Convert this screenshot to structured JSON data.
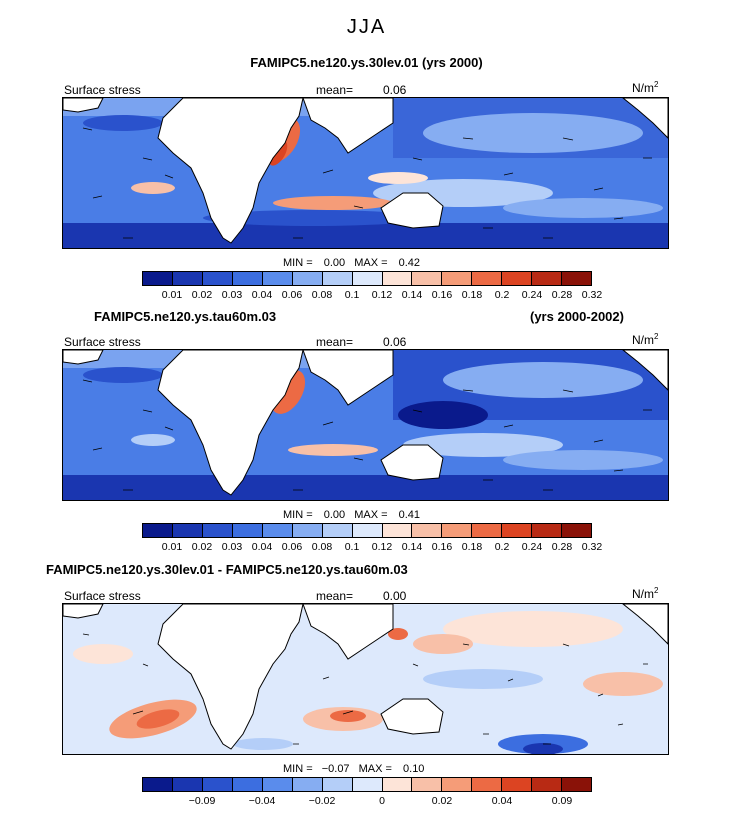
{
  "page_title": "JJA",
  "units_text": "N/m",
  "units_exp": "2",
  "mean_label": "mean=",
  "colors": {
    "stress": [
      "#0a1a8c",
      "#1a36b0",
      "#2a52cc",
      "#3c6ee0",
      "#5a8cec",
      "#86adf2",
      "#b4cef8",
      "#dde9fc",
      "#fde4d8",
      "#f8c0a8",
      "#f59c78",
      "#ec6a44",
      "#dc4422",
      "#b82a14",
      "#8a1208"
    ],
    "diff": [
      "#0a1a8c",
      "#1a36b0",
      "#2a52cc",
      "#3c6ee0",
      "#5a8cec",
      "#86adf2",
      "#b4cef8",
      "#dde9fc",
      "#fde4d8",
      "#f8c0a8",
      "#f59c78",
      "#ec6a44",
      "#dc4422",
      "#b82a14",
      "#8a1208"
    ]
  },
  "panels": [
    {
      "case_title": "FAMIPC5.ne120.ys.30lev.01 (yrs 2000)",
      "years": "",
      "field_label": "Surface stress",
      "mean_value": "0.06",
      "min_label": "MIN =",
      "min_value": "0.00",
      "max_label": "MAX =",
      "max_value": "0.42",
      "colorbar_ticks": [
        "0.01",
        "0.02",
        "0.03",
        "0.04",
        "0.06",
        "0.08",
        "0.1",
        "0.12",
        "0.14",
        "0.16",
        "0.18",
        "0.2",
        "0.24",
        "0.28",
        "0.32"
      ]
    },
    {
      "case_title": "FAMIPC5.ne120.ys.tau60m.03",
      "years": "(yrs 2000-2002)",
      "field_label": "Surface stress",
      "mean_value": "0.06",
      "min_label": "MIN =",
      "min_value": "0.00",
      "max_label": "MAX =",
      "max_value": "0.41",
      "colorbar_ticks": [
        "0.01",
        "0.02",
        "0.03",
        "0.04",
        "0.06",
        "0.08",
        "0.1",
        "0.12",
        "0.14",
        "0.16",
        "0.18",
        "0.2",
        "0.24",
        "0.28",
        "0.32"
      ]
    },
    {
      "case_title": "FAMIPC5.ne120.ys.30lev.01 - FAMIPC5.ne120.ys.tau60m.03",
      "years": "",
      "field_label": "Surface stress",
      "mean_value": "0.00",
      "min_label": "MIN =",
      "min_value": "−0.07",
      "max_label": "MAX =",
      "max_value": "0.10",
      "colorbar_ticks": [
        "−0.09",
        "−0.04",
        "−0.02",
        "0",
        "0.02",
        "0.04",
        "0.09"
      ]
    }
  ]
}
